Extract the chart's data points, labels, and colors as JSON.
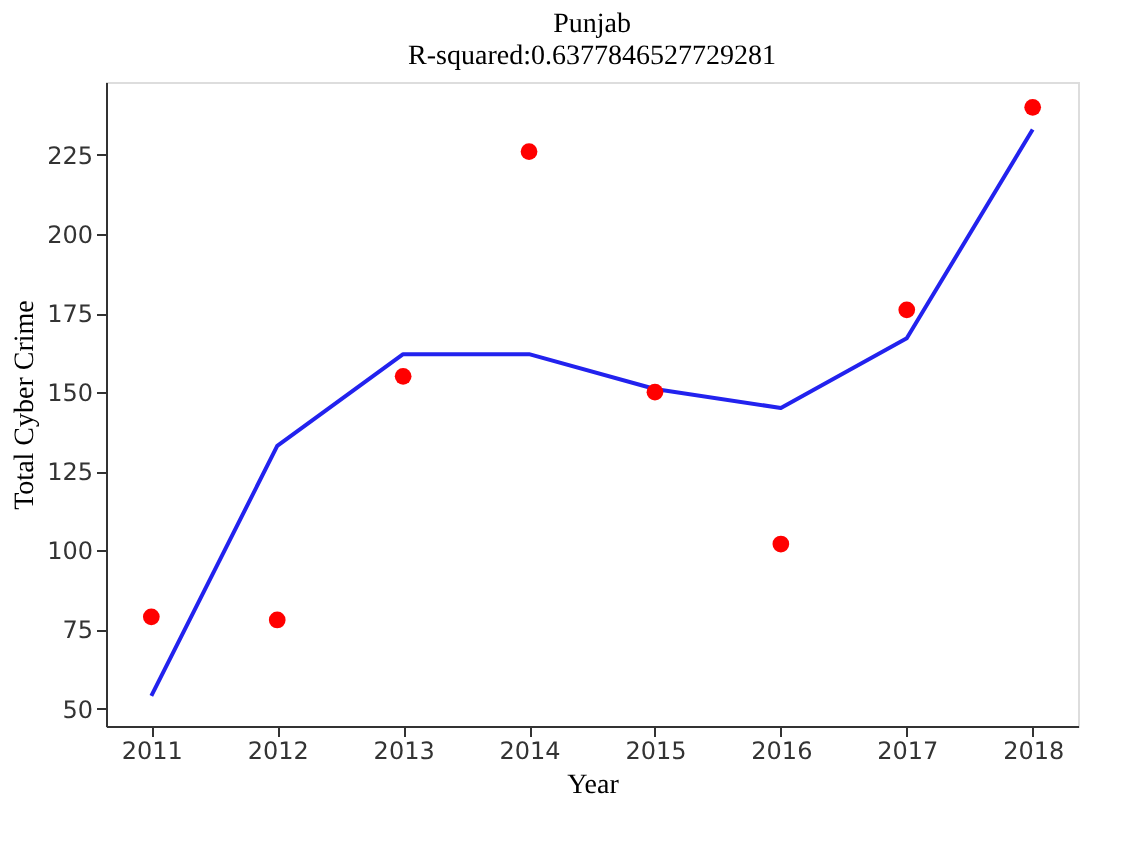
{
  "chart_data": {
    "type": "line",
    "title": "Punjab",
    "subtitle": "R-squared:0.6377846527729281",
    "xlabel": "Year",
    "ylabel": "Total Cyber Crime",
    "x": [
      2011,
      2012,
      2013,
      2014,
      2015,
      2016,
      2017,
      2018
    ],
    "series": [
      {
        "type": "scatter",
        "color": "#ff0000",
        "marker": "circle",
        "values": [
          79,
          78,
          155,
          226,
          150,
          102,
          176,
          240
        ]
      },
      {
        "color": "#2222ee",
        "marker": "none",
        "line_style": "solid",
        "values": [
          54,
          133,
          162,
          162,
          151,
          145,
          167,
          233
        ]
      }
    ],
    "xlim": [
      2010.64,
      2018.36
    ],
    "xticks": [
      2011,
      2012,
      2013,
      2014,
      2015,
      2016,
      2017,
      2018
    ],
    "ylim": [
      44.5,
      248
    ],
    "yticks": [
      50,
      75,
      100,
      125,
      150,
      175,
      200,
      225
    ],
    "grid": false
  }
}
